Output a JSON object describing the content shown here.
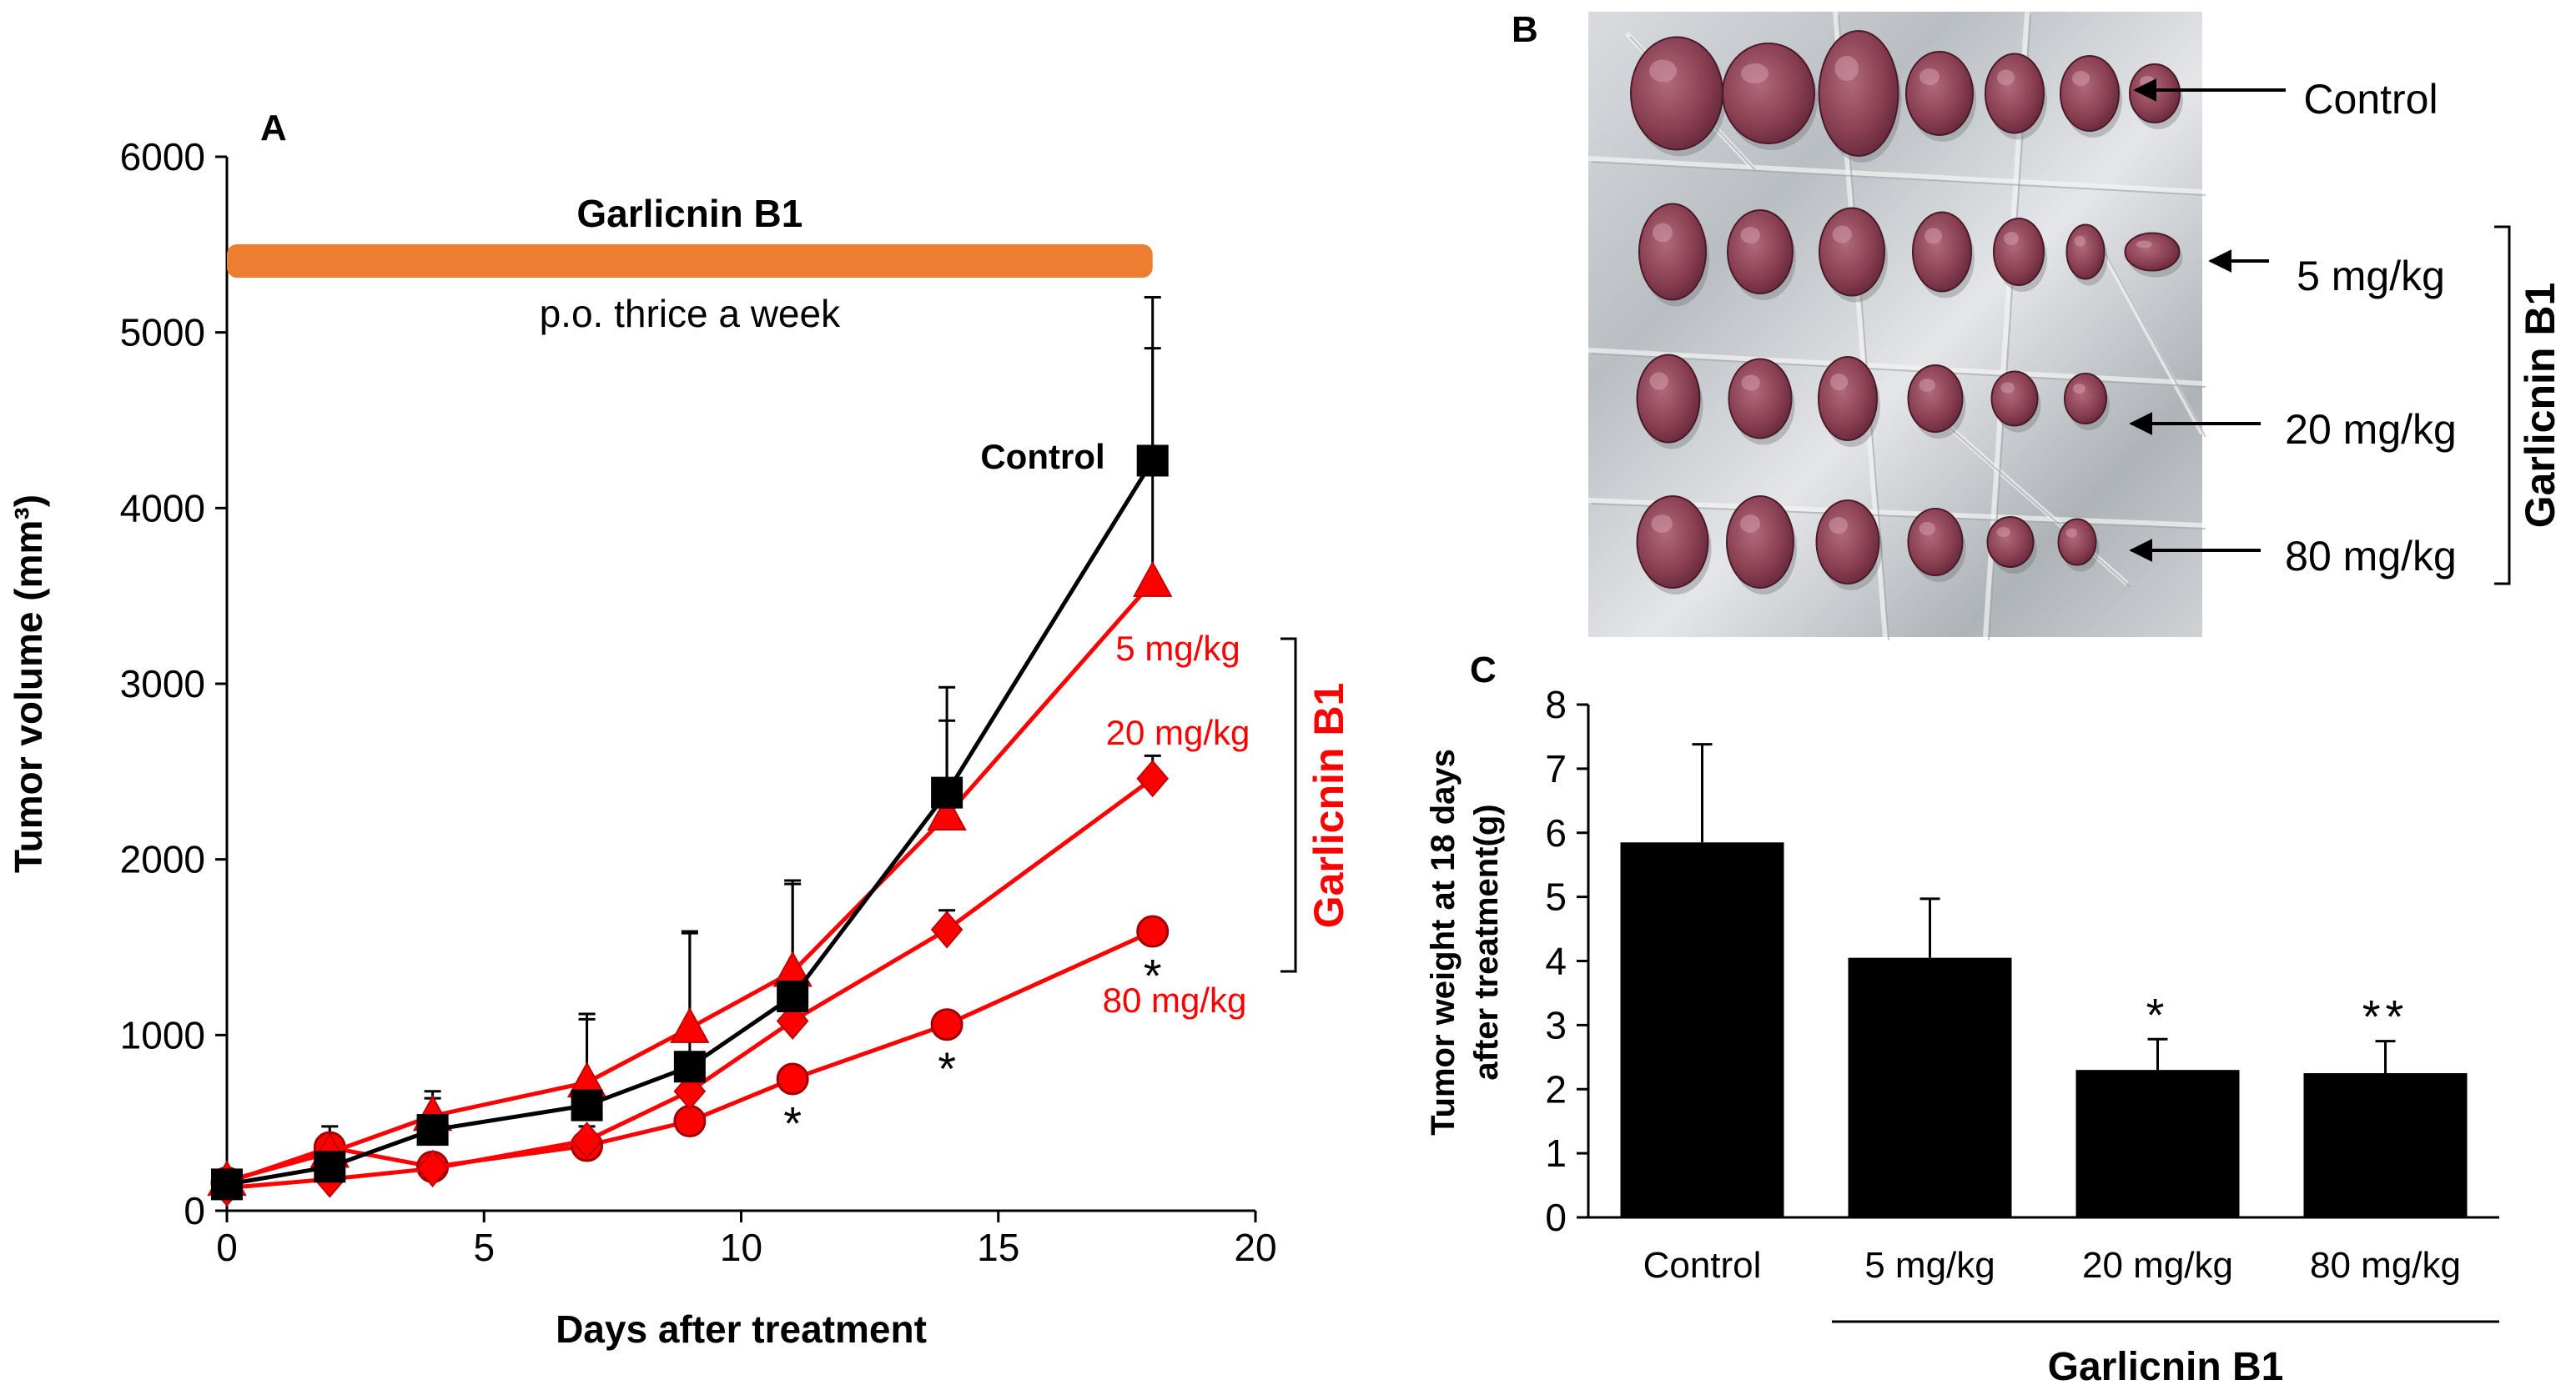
{
  "panel_labels": {
    "a": "A",
    "b": "B",
    "c": "C"
  },
  "colors": {
    "control": "#000000",
    "treated": "#ff0000",
    "bar": "#000000",
    "dosing": "#ed7d31",
    "foil": "#c8ccd0",
    "tumor": "#8a3f52"
  },
  "chart_data": [
    {
      "type": "line",
      "panel": "A",
      "title": "",
      "xlabel": "Days after treatment",
      "ylabel": "Tumor volume  (mm³)",
      "xlim": [
        0,
        20
      ],
      "ylim": [
        0,
        6000
      ],
      "xticks": [
        "0",
        "5",
        "10",
        "15",
        "20"
      ],
      "yticks": [
        "0",
        "1000",
        "2000",
        "3000",
        "4000",
        "5000",
        "6000"
      ],
      "x": [
        0,
        2,
        4,
        7,
        9,
        11,
        14,
        18
      ],
      "series": [
        {
          "name": "Control",
          "label": "Control",
          "color": "#000000",
          "marker": "square",
          "values": [
            150,
            250,
            460,
            600,
            820,
            1220,
            2380,
            4270
          ],
          "err": [
            60,
            180,
            180,
            520,
            760,
            640,
            600,
            930
          ]
        },
        {
          "name": "5 mg/kg",
          "label": "5 mg/kg",
          "color": "#ff0000",
          "marker": "triangle",
          "values": [
            170,
            330,
            540,
            730,
            1040,
            1360,
            2250,
            3580
          ],
          "err": [
            50,
            150,
            140,
            360,
            550,
            520,
            540,
            1330
          ]
        },
        {
          "name": "20 mg/kg",
          "label": "20 mg/kg",
          "color": "#ff0000",
          "marker": "diamond",
          "values": [
            130,
            180,
            240,
            400,
            680,
            1080,
            1600,
            2460
          ],
          "err": [
            40,
            60,
            60,
            80,
            120,
            200,
            110,
            130
          ]
        },
        {
          "name": "80 mg/kg",
          "label": "80 mg/kg",
          "color": "#ff0000",
          "marker": "circle",
          "values": [
            160,
            360,
            250,
            370,
            510,
            750,
            1060,
            1590
          ],
          "err": [
            40,
            60,
            40,
            40,
            40,
            40,
            40,
            40
          ]
        }
      ],
      "significance": [
        {
          "x": 11,
          "y": 530,
          "text": "*"
        },
        {
          "x": 14,
          "y": 840,
          "text": "*"
        },
        {
          "x": 18,
          "y": 1370,
          "text": "*"
        }
      ],
      "dosing_bar": {
        "label": "Garlicnin B1",
        "sublabel": "p.o. thrice a week",
        "x_start": 0,
        "x_end": 18
      },
      "group_bracket_label": "Garlicnin B1"
    },
    {
      "type": "bar",
      "panel": "C",
      "title": "",
      "xlabel": "",
      "ylabel_lines": [
        "Tumor weight at 18 days",
        "after treatment(g)"
      ],
      "ylim": [
        0,
        8
      ],
      "yticks": [
        "0",
        "1",
        "2",
        "3",
        "4",
        "5",
        "6",
        "7",
        "8"
      ],
      "categories": [
        "Control",
        "5 mg/kg",
        "20 mg/kg",
        "80 mg/kg"
      ],
      "values": [
        5.85,
        4.05,
        2.3,
        2.25
      ],
      "err": [
        1.53,
        0.92,
        0.48,
        0.5
      ],
      "significance": [
        "",
        "",
        "*",
        "**"
      ],
      "group_label": "Garlicnin B1"
    }
  ],
  "photo": {
    "rows": [
      {
        "label": "Control",
        "count": 7
      },
      {
        "label": "5 mg/kg",
        "count": 7
      },
      {
        "label": "20 mg/kg",
        "count": 6
      },
      {
        "label": "80 mg/kg",
        "count": 6
      }
    ],
    "group_label": "Garlicnin B1"
  }
}
